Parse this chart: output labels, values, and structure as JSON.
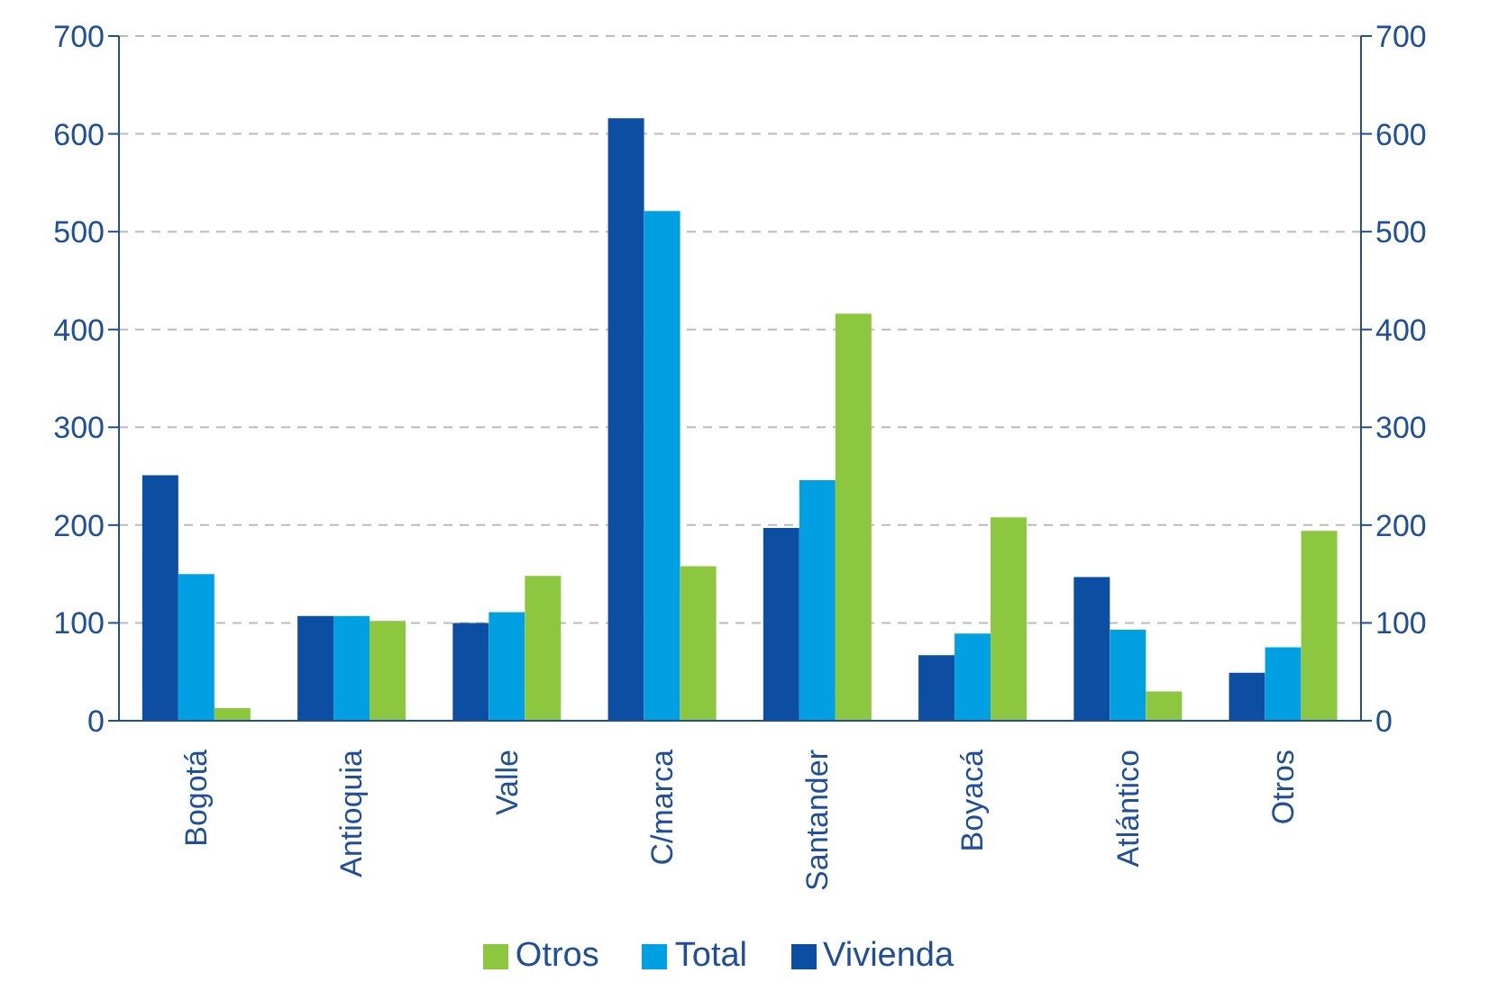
{
  "chart_data": {
    "type": "bar",
    "categories": [
      "Bogotá",
      "Antioquia",
      "Valle",
      "C/marca",
      "Santander",
      "Boyacá",
      "Atlántico",
      "Otros"
    ],
    "series": [
      {
        "name": "Vivienda",
        "color": "#0b4ea2",
        "values": [
          251,
          107,
          100,
          616,
          197,
          67,
          147,
          49
        ]
      },
      {
        "name": "Total",
        "color": "#00a0e3",
        "values": [
          150,
          107,
          111,
          521,
          246,
          89,
          93,
          75
        ]
      },
      {
        "name": "Otros",
        "color": "#8dc63f",
        "values": [
          13,
          102,
          148,
          158,
          416,
          208,
          30,
          194
        ]
      }
    ],
    "ylim": [
      0,
      700
    ],
    "yticks": [
      0,
      100,
      200,
      300,
      400,
      500,
      600,
      700
    ],
    "y2lim": [
      0,
      700
    ],
    "y2ticks": [
      0,
      100,
      200,
      300,
      400,
      500,
      600,
      700
    ],
    "grid": "y",
    "legend": "bottom"
  }
}
